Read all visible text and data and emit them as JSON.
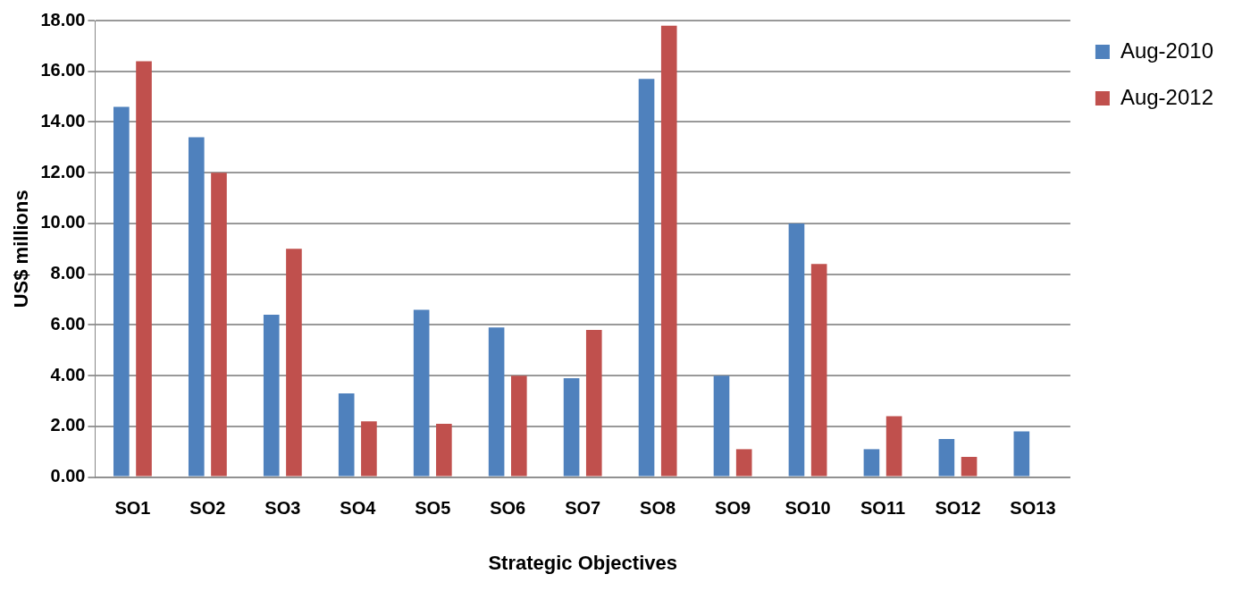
{
  "chart_data": {
    "type": "bar",
    "xlabel": "Strategic Objectives",
    "ylabel": "US$ millions",
    "categories": [
      "SO1",
      "SO2",
      "SO3",
      "SO4",
      "SO5",
      "SO6",
      "SO7",
      "SO8",
      "SO9",
      "SO10",
      "SO11",
      "SO12",
      "SO13"
    ],
    "series": [
      {
        "name": "Aug-2010",
        "color": "#4f81bd",
        "values": [
          14.6,
          13.4,
          6.4,
          3.3,
          6.6,
          5.9,
          3.9,
          15.7,
          4.0,
          10.0,
          1.1,
          1.5,
          1.8
        ]
      },
      {
        "name": "Aug-2012",
        "color": "#c0504d",
        "values": [
          16.4,
          12.0,
          9.0,
          2.2,
          2.1,
          4.0,
          5.8,
          17.8,
          1.1,
          8.4,
          2.4,
          0.8,
          0.0
        ]
      }
    ],
    "ylim": [
      0,
      18
    ],
    "yticks": [
      {
        "value": 0,
        "label": "0.00"
      },
      {
        "value": 2,
        "label": "2.00"
      },
      {
        "value": 4,
        "label": "4.00"
      },
      {
        "value": 6,
        "label": "6.00"
      },
      {
        "value": 8,
        "label": "8.00"
      },
      {
        "value": 10,
        "label": "10.00"
      },
      {
        "value": 12,
        "label": "12.00"
      },
      {
        "value": 14,
        "label": "14.00"
      },
      {
        "value": 16,
        "label": "16.00"
      },
      {
        "value": 18,
        "label": "18.00"
      }
    ],
    "grid": "y",
    "legend": "top right"
  }
}
